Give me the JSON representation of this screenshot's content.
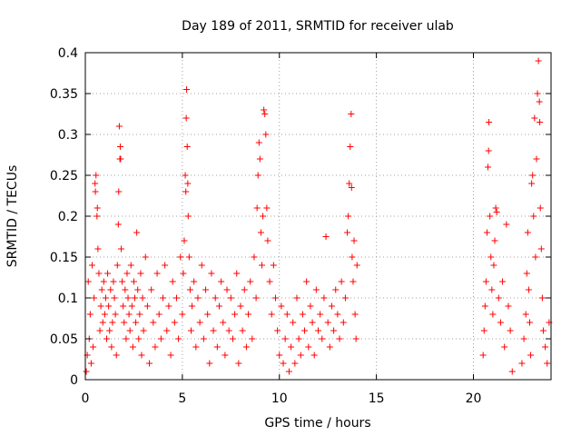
{
  "chart_data": {
    "type": "scatter",
    "title": "Day 189 of 2011, SRMTID for receiver ulab",
    "xlabel": "GPS time / hours",
    "ylabel": "SRMTID / TECUs",
    "xlim": [
      0,
      24
    ],
    "ylim": [
      0,
      0.4
    ],
    "xticks": [
      0,
      5,
      10,
      15,
      20
    ],
    "xtick_labels": [
      "0",
      "5",
      "10",
      "15",
      "20"
    ],
    "yticks": [
      0,
      0.05,
      0.1,
      0.15,
      0.2,
      0.25,
      0.3,
      0.35,
      0.4
    ],
    "ytick_labels": [
      "0",
      "0.05",
      "0.1",
      "0.15",
      "0.2",
      "0.25",
      "0.3",
      "0.35",
      "0.4"
    ],
    "grid": true,
    "marker": "+",
    "color": "#ff0000",
    "series": [
      {
        "name": "SRMTID",
        "points": [
          [
            0.05,
            0.01
          ],
          [
            0.1,
            0.03
          ],
          [
            0.15,
            0.12
          ],
          [
            0.2,
            0.05
          ],
          [
            0.25,
            0.08
          ],
          [
            0.3,
            0.02
          ],
          [
            0.35,
            0.14
          ],
          [
            0.4,
            0.04
          ],
          [
            0.45,
            0.1
          ],
          [
            0.5,
            0.24
          ],
          [
            0.52,
            0.23
          ],
          [
            0.55,
            0.25
          ],
          [
            0.6,
            0.2
          ],
          [
            0.62,
            0.21
          ],
          [
            0.65,
            0.16
          ],
          [
            0.7,
            0.13
          ],
          [
            0.75,
            0.06
          ],
          [
            0.8,
            0.09
          ],
          [
            0.85,
            0.11
          ],
          [
            0.9,
            0.07
          ],
          [
            0.95,
            0.12
          ],
          [
            1.0,
            0.08
          ],
          [
            1.05,
            0.1
          ],
          [
            1.1,
            0.05
          ],
          [
            1.15,
            0.13
          ],
          [
            1.2,
            0.09
          ],
          [
            1.25,
            0.06
          ],
          [
            1.3,
            0.11
          ],
          [
            1.35,
            0.04
          ],
          [
            1.4,
            0.07
          ],
          [
            1.45,
            0.12
          ],
          [
            1.5,
            0.1
          ],
          [
            1.55,
            0.08
          ],
          [
            1.6,
            0.03
          ],
          [
            1.65,
            0.14
          ],
          [
            1.7,
            0.19
          ],
          [
            1.72,
            0.23
          ],
          [
            1.75,
            0.31
          ],
          [
            1.78,
            0.27
          ],
          [
            1.8,
            0.285
          ],
          [
            1.82,
            0.27
          ],
          [
            1.85,
            0.16
          ],
          [
            1.9,
            0.12
          ],
          [
            1.95,
            0.09
          ],
          [
            2.0,
            0.07
          ],
          [
            2.05,
            0.11
          ],
          [
            2.1,
            0.05
          ],
          [
            2.15,
            0.13
          ],
          [
            2.2,
            0.1
          ],
          [
            2.25,
            0.08
          ],
          [
            2.3,
            0.06
          ],
          [
            2.35,
            0.14
          ],
          [
            2.4,
            0.09
          ],
          [
            2.45,
            0.04
          ],
          [
            2.5,
            0.12
          ],
          [
            2.55,
            0.1
          ],
          [
            2.6,
            0.07
          ],
          [
            2.65,
            0.18
          ],
          [
            2.7,
            0.11
          ],
          [
            2.75,
            0.05
          ],
          [
            2.8,
            0.08
          ],
          [
            2.85,
            0.13
          ],
          [
            2.9,
            0.03
          ],
          [
            2.95,
            0.1
          ],
          [
            3.0,
            0.06
          ],
          [
            3.1,
            0.15
          ],
          [
            3.2,
            0.09
          ],
          [
            3.3,
            0.02
          ],
          [
            3.4,
            0.11
          ],
          [
            3.5,
            0.07
          ],
          [
            3.6,
            0.04
          ],
          [
            3.7,
            0.13
          ],
          [
            3.8,
            0.08
          ],
          [
            3.9,
            0.05
          ],
          [
            4.0,
            0.1
          ],
          [
            4.1,
            0.14
          ],
          [
            4.2,
            0.06
          ],
          [
            4.3,
            0.09
          ],
          [
            4.4,
            0.03
          ],
          [
            4.5,
            0.12
          ],
          [
            4.6,
            0.07
          ],
          [
            4.7,
            0.1
          ],
          [
            4.8,
            0.05
          ],
          [
            4.9,
            0.15
          ],
          [
            5.0,
            0.08
          ],
          [
            5.05,
            0.13
          ],
          [
            5.1,
            0.17
          ],
          [
            5.15,
            0.25
          ],
          [
            5.18,
            0.23
          ],
          [
            5.2,
            0.32
          ],
          [
            5.22,
            0.355
          ],
          [
            5.25,
            0.285
          ],
          [
            5.28,
            0.24
          ],
          [
            5.3,
            0.2
          ],
          [
            5.35,
            0.15
          ],
          [
            5.4,
            0.11
          ],
          [
            5.45,
            0.06
          ],
          [
            5.5,
            0.09
          ],
          [
            5.6,
            0.12
          ],
          [
            5.7,
            0.04
          ],
          [
            5.8,
            0.1
          ],
          [
            5.9,
            0.07
          ],
          [
            6.0,
            0.14
          ],
          [
            6.1,
            0.05
          ],
          [
            6.2,
            0.11
          ],
          [
            6.3,
            0.08
          ],
          [
            6.4,
            0.02
          ],
          [
            6.5,
            0.13
          ],
          [
            6.6,
            0.06
          ],
          [
            6.7,
            0.1
          ],
          [
            6.8,
            0.04
          ],
          [
            6.9,
            0.09
          ],
          [
            7.0,
            0.12
          ],
          [
            7.1,
            0.07
          ],
          [
            7.2,
            0.03
          ],
          [
            7.3,
            0.11
          ],
          [
            7.4,
            0.06
          ],
          [
            7.5,
            0.1
          ],
          [
            7.6,
            0.05
          ],
          [
            7.7,
            0.08
          ],
          [
            7.8,
            0.13
          ],
          [
            7.9,
            0.02
          ],
          [
            8.0,
            0.09
          ],
          [
            8.1,
            0.06
          ],
          [
            8.2,
            0.11
          ],
          [
            8.3,
            0.04
          ],
          [
            8.4,
            0.08
          ],
          [
            8.5,
            0.12
          ],
          [
            8.6,
            0.05
          ],
          [
            8.7,
            0.15
          ],
          [
            8.8,
            0.1
          ],
          [
            8.85,
            0.21
          ],
          [
            8.9,
            0.25
          ],
          [
            8.95,
            0.29
          ],
          [
            9.0,
            0.27
          ],
          [
            9.05,
            0.18
          ],
          [
            9.1,
            0.14
          ],
          [
            9.15,
            0.2
          ],
          [
            9.2,
            0.33
          ],
          [
            9.25,
            0.325
          ],
          [
            9.3,
            0.3
          ],
          [
            9.35,
            0.21
          ],
          [
            9.4,
            0.17
          ],
          [
            9.5,
            0.12
          ],
          [
            9.6,
            0.08
          ],
          [
            9.7,
            0.14
          ],
          [
            9.8,
            0.1
          ],
          [
            9.9,
            0.06
          ],
          [
            10.0,
            0.03
          ],
          [
            10.1,
            0.09
          ],
          [
            10.2,
            0.02
          ],
          [
            10.3,
            0.05
          ],
          [
            10.4,
            0.08
          ],
          [
            10.5,
            0.01
          ],
          [
            10.6,
            0.04
          ],
          [
            10.7,
            0.07
          ],
          [
            10.8,
            0.02
          ],
          [
            10.9,
            0.1
          ],
          [
            11.0,
            0.05
          ],
          [
            11.1,
            0.03
          ],
          [
            11.2,
            0.08
          ],
          [
            11.3,
            0.06
          ],
          [
            11.4,
            0.12
          ],
          [
            11.5,
            0.04
          ],
          [
            11.6,
            0.09
          ],
          [
            11.7,
            0.07
          ],
          [
            11.8,
            0.03
          ],
          [
            11.9,
            0.11
          ],
          [
            12.0,
            0.06
          ],
          [
            12.1,
            0.08
          ],
          [
            12.2,
            0.05
          ],
          [
            12.3,
            0.1
          ],
          [
            12.4,
            0.175
          ],
          [
            12.5,
            0.07
          ],
          [
            12.6,
            0.04
          ],
          [
            12.7,
            0.09
          ],
          [
            12.8,
            0.06
          ],
          [
            12.9,
            0.11
          ],
          [
            13.0,
            0.08
          ],
          [
            13.1,
            0.05
          ],
          [
            13.2,
            0.12
          ],
          [
            13.3,
            0.07
          ],
          [
            13.4,
            0.1
          ],
          [
            13.5,
            0.18
          ],
          [
            13.55,
            0.2
          ],
          [
            13.6,
            0.24
          ],
          [
            13.65,
            0.285
          ],
          [
            13.7,
            0.325
          ],
          [
            13.72,
            0.235
          ],
          [
            13.75,
            0.15
          ],
          [
            13.8,
            0.12
          ],
          [
            13.85,
            0.17
          ],
          [
            13.9,
            0.08
          ],
          [
            13.95,
            0.05
          ],
          [
            14.0,
            0.14
          ],
          [
            20.5,
            0.03
          ],
          [
            20.55,
            0.06
          ],
          [
            20.6,
            0.09
          ],
          [
            20.65,
            0.12
          ],
          [
            20.7,
            0.18
          ],
          [
            20.75,
            0.26
          ],
          [
            20.78,
            0.28
          ],
          [
            20.8,
            0.315
          ],
          [
            20.85,
            0.2
          ],
          [
            20.9,
            0.15
          ],
          [
            20.95,
            0.11
          ],
          [
            21.0,
            0.08
          ],
          [
            21.05,
            0.14
          ],
          [
            21.1,
            0.17
          ],
          [
            21.15,
            0.21
          ],
          [
            21.2,
            0.205
          ],
          [
            21.3,
            0.1
          ],
          [
            21.4,
            0.07
          ],
          [
            21.5,
            0.12
          ],
          [
            21.6,
            0.04
          ],
          [
            21.7,
            0.19
          ],
          [
            21.8,
            0.09
          ],
          [
            21.9,
            0.06
          ],
          [
            22.0,
            0.01
          ],
          [
            22.5,
            0.02
          ],
          [
            22.6,
            0.05
          ],
          [
            22.7,
            0.08
          ],
          [
            22.75,
            0.13
          ],
          [
            22.8,
            0.18
          ],
          [
            22.85,
            0.11
          ],
          [
            22.9,
            0.07
          ],
          [
            22.95,
            0.03
          ],
          [
            23.0,
            0.24
          ],
          [
            23.05,
            0.25
          ],
          [
            23.1,
            0.2
          ],
          [
            23.15,
            0.32
          ],
          [
            23.2,
            0.15
          ],
          [
            23.25,
            0.27
          ],
          [
            23.3,
            0.35
          ],
          [
            23.35,
            0.39
          ],
          [
            23.4,
            0.34
          ],
          [
            23.42,
            0.315
          ],
          [
            23.45,
            0.21
          ],
          [
            23.5,
            0.16
          ],
          [
            23.55,
            0.1
          ],
          [
            23.6,
            0.06
          ],
          [
            23.7,
            0.04
          ],
          [
            23.8,
            0.02
          ],
          [
            23.9,
            0.07
          ]
        ]
      }
    ]
  }
}
